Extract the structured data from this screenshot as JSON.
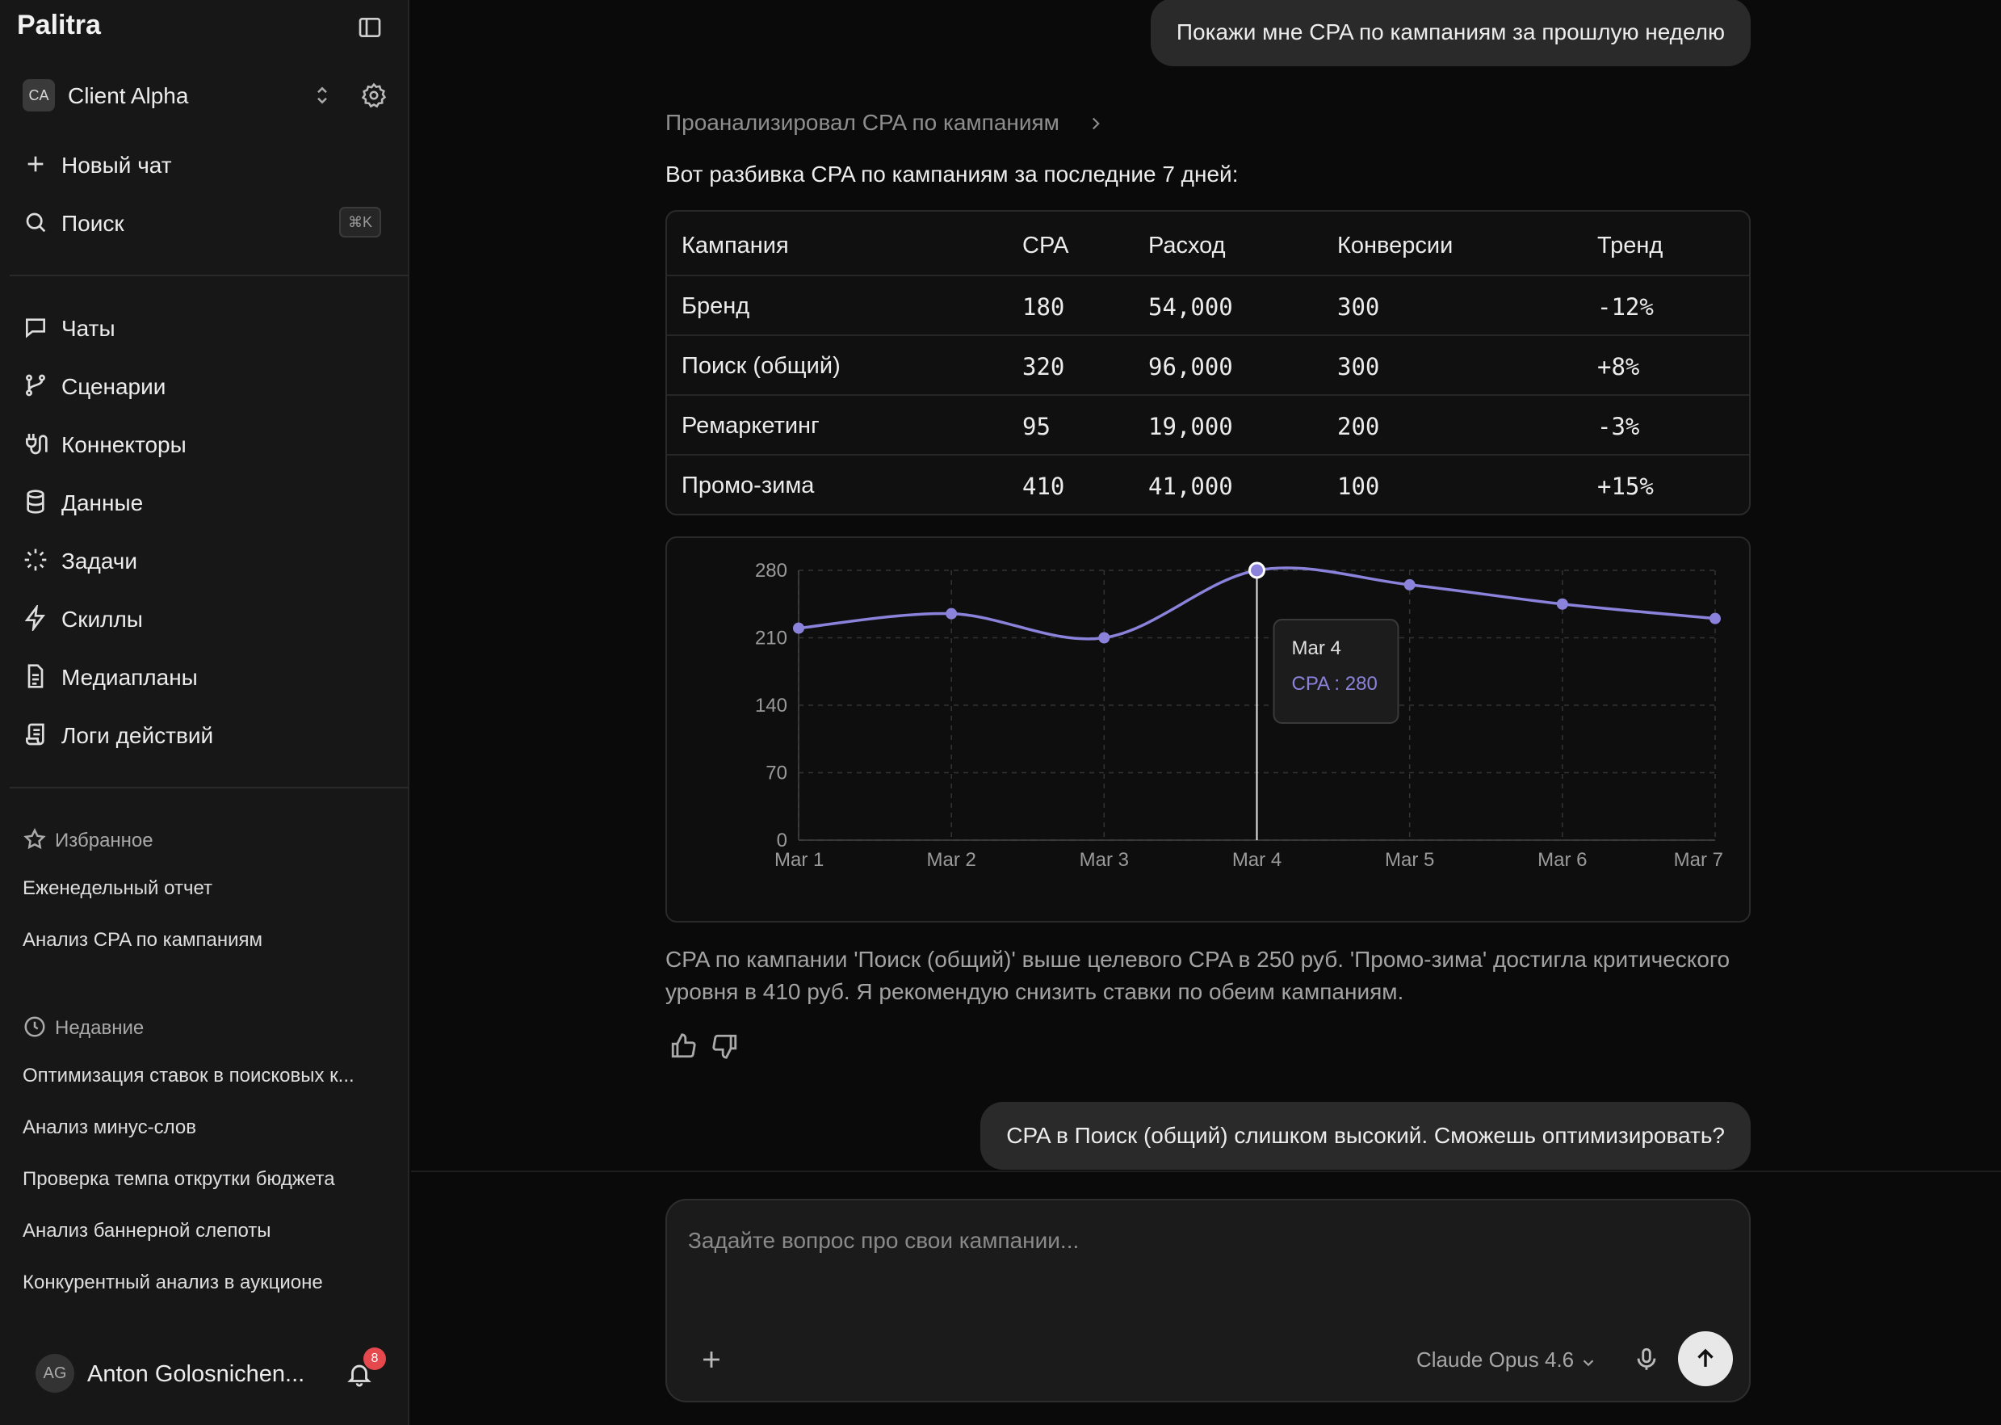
{
  "app": {
    "name": "Palitra"
  },
  "workspace": {
    "badge": "CA",
    "name": "Client Alpha"
  },
  "sidebar": {
    "primary": [
      {
        "label": "Новый чат",
        "icon": "plus-icon"
      },
      {
        "label": "Поиск",
        "icon": "search-icon",
        "shortcut": "⌘K"
      }
    ],
    "nav": [
      {
        "label": "Чаты",
        "icon": "chat-icon"
      },
      {
        "label": "Сценарии",
        "icon": "branch-icon"
      },
      {
        "label": "Коннекторы",
        "icon": "plug-icon"
      },
      {
        "label": "Данные",
        "icon": "database-icon"
      },
      {
        "label": "Задачи",
        "icon": "loader-icon"
      },
      {
        "label": "Скиллы",
        "icon": "lightning-icon"
      },
      {
        "label": "Медиапланы",
        "icon": "document-icon"
      },
      {
        "label": "Логи действий",
        "icon": "scroll-icon"
      }
    ],
    "favorites": {
      "title": "Избранное",
      "items": [
        "Еженедельный отчет",
        "Анализ CPA по кампаниям"
      ]
    },
    "recent": {
      "title": "Недавние",
      "items": [
        "Оптимизация ставок в поисковых к...",
        "Анализ минус-слов",
        "Проверка темпа открутки бюджета",
        "Анализ баннерной слепоты",
        "Конкурентный анализ в аукционе"
      ]
    },
    "user": {
      "initials": "AG",
      "name": "Anton Golosnichen...",
      "notifications": "8"
    }
  },
  "chat": {
    "user_msg_1": "Покажи мне CPA по кампаниям за прошлую неделю",
    "thought": "Проанализировал CPA по кампаниям",
    "intro": "Вот разбивка CPA по кампаниям за последние 7 дней:",
    "table": {
      "headers": [
        "Кампания",
        "CPA",
        "Расход",
        "Конверсии",
        "Тренд"
      ],
      "rows": [
        [
          "Бренд",
          "180",
          "54,000",
          "300",
          "-12%"
        ],
        [
          "Поиск (общий)",
          "320",
          "96,000",
          "300",
          "+8%"
        ],
        [
          "Ремаркетинг",
          "95",
          "19,000",
          "200",
          "-3%"
        ],
        [
          "Промо-зима",
          "410",
          "41,000",
          "100",
          "+15%"
        ]
      ]
    },
    "summary": "CPA по кампании 'Поиск (общий)' выше целевого CPA в 250 руб. 'Промо-зима' достигла критического уровня в 410 руб. Я рекомендую снизить ставки по обеим кампаниям.",
    "user_msg_2": "CPA в Поиск (общий) слишком высокий. Сможешь оптимизировать?"
  },
  "chart_data": {
    "type": "line",
    "x": [
      "Mar 1",
      "Mar 2",
      "Mar 3",
      "Mar 4",
      "Mar 5",
      "Mar 6",
      "Mar 7"
    ],
    "series": [
      {
        "values": [
          220,
          235,
          210,
          280,
          265,
          245,
          230
        ],
        "color": "#8b83db"
      }
    ],
    "ylim": [
      0,
      280
    ],
    "yticks": [
      0,
      70,
      140,
      210,
      280
    ],
    "grid": true,
    "tooltip": {
      "title": "Mar 4",
      "label": "CPA : 280",
      "index": 3
    }
  },
  "composer": {
    "placeholder": "Задайте вопрос про свои кампании...",
    "model": "Claude Opus 4.6"
  }
}
